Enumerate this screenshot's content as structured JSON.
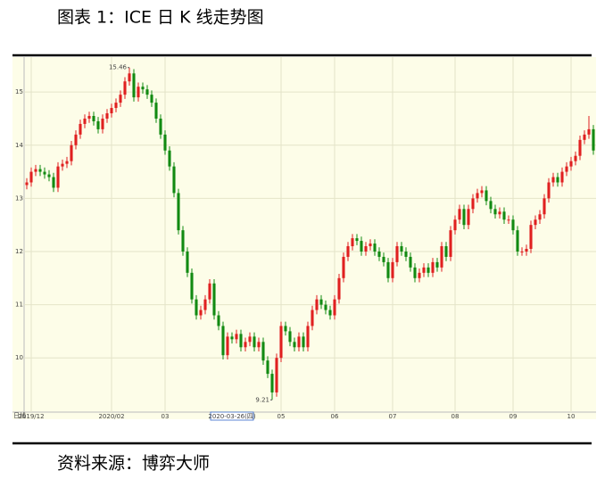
{
  "header": {
    "title": "图表 1：ICE 日 K 线走势图"
  },
  "footer": {
    "source": "资料来源：博弈大师"
  },
  "chart_data": {
    "type": "candlestick",
    "period_label": "日线",
    "up_color": "#e02020",
    "down_color": "#128a12",
    "ylim": [
      8.98,
      15.59
    ],
    "yticks": [
      10,
      11,
      12,
      13,
      14,
      15
    ],
    "grid": true,
    "xlim": [
      -0.6,
      127.6
    ],
    "xticks": [
      {
        "value": 1,
        "label": "2019/12"
      },
      {
        "value": 19,
        "label": "2020/02"
      },
      {
        "value": 31,
        "label": "03"
      },
      {
        "value": 57,
        "label": "05"
      },
      {
        "value": 69,
        "label": "06"
      },
      {
        "value": 82,
        "label": "07"
      },
      {
        "value": 96,
        "label": "08"
      },
      {
        "value": 109,
        "label": "09"
      },
      {
        "value": 122,
        "label": "10"
      }
    ],
    "crosshair": {
      "value": 46,
      "label": "2020-03-26(四)"
    },
    "high_mark": 15.46,
    "low_mark": 9.21,
    "open": [
      13.25,
      13.3,
      13.5,
      13.55,
      13.5,
      13.45,
      13.4,
      13.2,
      13.6,
      13.65,
      13.7,
      14.0,
      14.2,
      14.4,
      14.5,
      14.55,
      14.45,
      14.3,
      14.5,
      14.6,
      14.7,
      14.8,
      14.95,
      15.2,
      15.35,
      14.9,
      15.1,
      15.05,
      14.95,
      14.8,
      14.5,
      14.2,
      13.9,
      13.6,
      13.1,
      12.4,
      12.0,
      11.6,
      11.1,
      10.8,
      10.9,
      11.1,
      11.4,
      10.8,
      10.6,
      10.05,
      10.4,
      10.35,
      10.45,
      10.2,
      10.3,
      10.4,
      10.2,
      10.3,
      9.95,
      9.7,
      9.35,
      10.0,
      10.6,
      10.5,
      10.3,
      10.2,
      10.4,
      10.2,
      10.6,
      10.9,
      11.1,
      11.0,
      10.9,
      10.8,
      11.1,
      11.5,
      11.9,
      12.1,
      12.25,
      12.2,
      12.0,
      12.1,
      12.15,
      12.0,
      11.9,
      11.8,
      11.5,
      11.8,
      12.1,
      12.0,
      11.9,
      11.7,
      11.5,
      11.6,
      11.7,
      11.6,
      11.8,
      11.7,
      12.1,
      11.9,
      12.4,
      12.6,
      12.8,
      12.5,
      12.8,
      13.0,
      13.1,
      13.15,
      12.95,
      12.8,
      12.7,
      12.75,
      12.6,
      12.6,
      12.4,
      12.0,
      12.0,
      12.05,
      12.5,
      12.6,
      12.7,
      13.0,
      13.3,
      13.4,
      13.3,
      13.5,
      13.6,
      13.7,
      13.8,
      14.1,
      14.2,
      14.3
    ],
    "high": [
      13.38,
      13.58,
      13.63,
      13.63,
      13.58,
      13.53,
      13.48,
      13.68,
      13.73,
      13.78,
      14.08,
      14.28,
      14.48,
      14.58,
      14.63,
      14.63,
      14.53,
      14.58,
      14.68,
      14.78,
      14.88,
      15.03,
      15.28,
      15.46,
      15.43,
      15.18,
      15.18,
      15.13,
      15.03,
      14.88,
      14.58,
      14.28,
      13.98,
      13.68,
      13.18,
      12.48,
      12.08,
      11.68,
      11.18,
      10.98,
      11.18,
      11.48,
      11.48,
      10.88,
      10.68,
      10.48,
      10.48,
      10.53,
      10.53,
      10.38,
      10.48,
      10.48,
      10.38,
      10.38,
      10.03,
      9.78,
      10.08,
      10.68,
      10.68,
      10.58,
      10.38,
      10.48,
      10.48,
      10.68,
      10.98,
      11.18,
      11.18,
      11.08,
      10.98,
      11.18,
      11.58,
      11.98,
      12.18,
      12.33,
      12.33,
      12.28,
      12.18,
      12.23,
      12.23,
      12.08,
      11.98,
      11.88,
      11.88,
      12.18,
      12.18,
      12.08,
      11.98,
      11.78,
      11.68,
      11.78,
      11.78,
      11.88,
      11.88,
      12.18,
      12.18,
      12.48,
      12.68,
      12.88,
      12.88,
      12.88,
      13.08,
      13.18,
      13.23,
      13.23,
      13.03,
      12.88,
      12.83,
      12.83,
      12.68,
      12.68,
      12.48,
      12.08,
      12.13,
      12.58,
      12.68,
      12.78,
      13.08,
      13.38,
      13.48,
      13.48,
      13.58,
      13.68,
      13.78,
      13.88,
      14.18,
      14.28,
      14.55,
      14.38
    ],
    "low": [
      13.17,
      13.22,
      13.42,
      13.42,
      13.37,
      13.32,
      13.12,
      13.12,
      13.52,
      13.57,
      13.62,
      13.92,
      14.12,
      14.32,
      14.42,
      14.37,
      14.22,
      14.22,
      14.42,
      14.52,
      14.62,
      14.72,
      14.87,
      15.12,
      14.82,
      14.82,
      14.97,
      14.87,
      14.72,
      14.42,
      14.12,
      13.82,
      13.52,
      13.02,
      12.32,
      11.92,
      11.52,
      11.02,
      10.72,
      10.72,
      10.82,
      11.02,
      10.72,
      10.52,
      9.97,
      9.97,
      10.27,
      10.27,
      10.12,
      10.12,
      10.22,
      10.12,
      10.12,
      9.87,
      9.62,
      9.21,
      9.27,
      9.92,
      10.42,
      10.22,
      10.12,
      10.12,
      10.12,
      10.12,
      10.52,
      10.82,
      10.92,
      10.82,
      10.72,
      10.72,
      11.02,
      11.42,
      11.82,
      12.02,
      12.12,
      11.92,
      11.92,
      12.02,
      11.92,
      11.82,
      11.72,
      11.42,
      11.42,
      11.72,
      11.92,
      11.82,
      11.62,
      11.42,
      11.42,
      11.52,
      11.52,
      11.52,
      11.62,
      11.62,
      11.82,
      11.82,
      12.32,
      12.52,
      12.42,
      12.42,
      12.72,
      12.92,
      13.02,
      12.87,
      12.72,
      12.62,
      12.62,
      12.52,
      12.52,
      12.32,
      11.92,
      11.92,
      11.92,
      11.97,
      12.42,
      12.52,
      12.62,
      12.92,
      13.22,
      13.22,
      13.22,
      13.42,
      13.52,
      13.62,
      13.72,
      14.02,
      14.12,
      13.82
    ],
    "close": [
      13.3,
      13.5,
      13.55,
      13.5,
      13.45,
      13.4,
      13.2,
      13.6,
      13.65,
      13.7,
      14.0,
      14.2,
      14.4,
      14.5,
      14.55,
      14.45,
      14.3,
      14.5,
      14.6,
      14.7,
      14.8,
      14.95,
      15.2,
      15.35,
      14.9,
      15.1,
      15.05,
      14.95,
      14.8,
      14.5,
      14.2,
      13.9,
      13.6,
      13.1,
      12.4,
      12.0,
      11.6,
      11.1,
      10.8,
      10.9,
      11.1,
      11.4,
      10.8,
      10.6,
      10.05,
      10.4,
      10.35,
      10.45,
      10.2,
      10.3,
      10.4,
      10.2,
      10.3,
      9.95,
      9.7,
      9.35,
      10.0,
      10.6,
      10.5,
      10.3,
      10.2,
      10.4,
      10.2,
      10.6,
      10.9,
      11.1,
      11.0,
      10.9,
      10.8,
      11.1,
      11.5,
      11.9,
      12.1,
      12.25,
      12.2,
      12.0,
      12.1,
      12.15,
      12.0,
      11.9,
      11.8,
      11.5,
      11.8,
      12.1,
      12.0,
      11.9,
      11.7,
      11.5,
      11.6,
      11.7,
      11.6,
      11.8,
      11.7,
      12.1,
      11.9,
      12.4,
      12.6,
      12.8,
      12.5,
      12.8,
      13.0,
      13.1,
      13.15,
      12.95,
      12.8,
      12.7,
      12.75,
      12.6,
      12.6,
      12.4,
      12.0,
      12.0,
      12.05,
      12.5,
      12.6,
      12.7,
      13.0,
      13.3,
      13.4,
      13.3,
      13.5,
      13.6,
      13.7,
      13.8,
      14.1,
      14.2,
      14.3,
      13.9
    ]
  }
}
